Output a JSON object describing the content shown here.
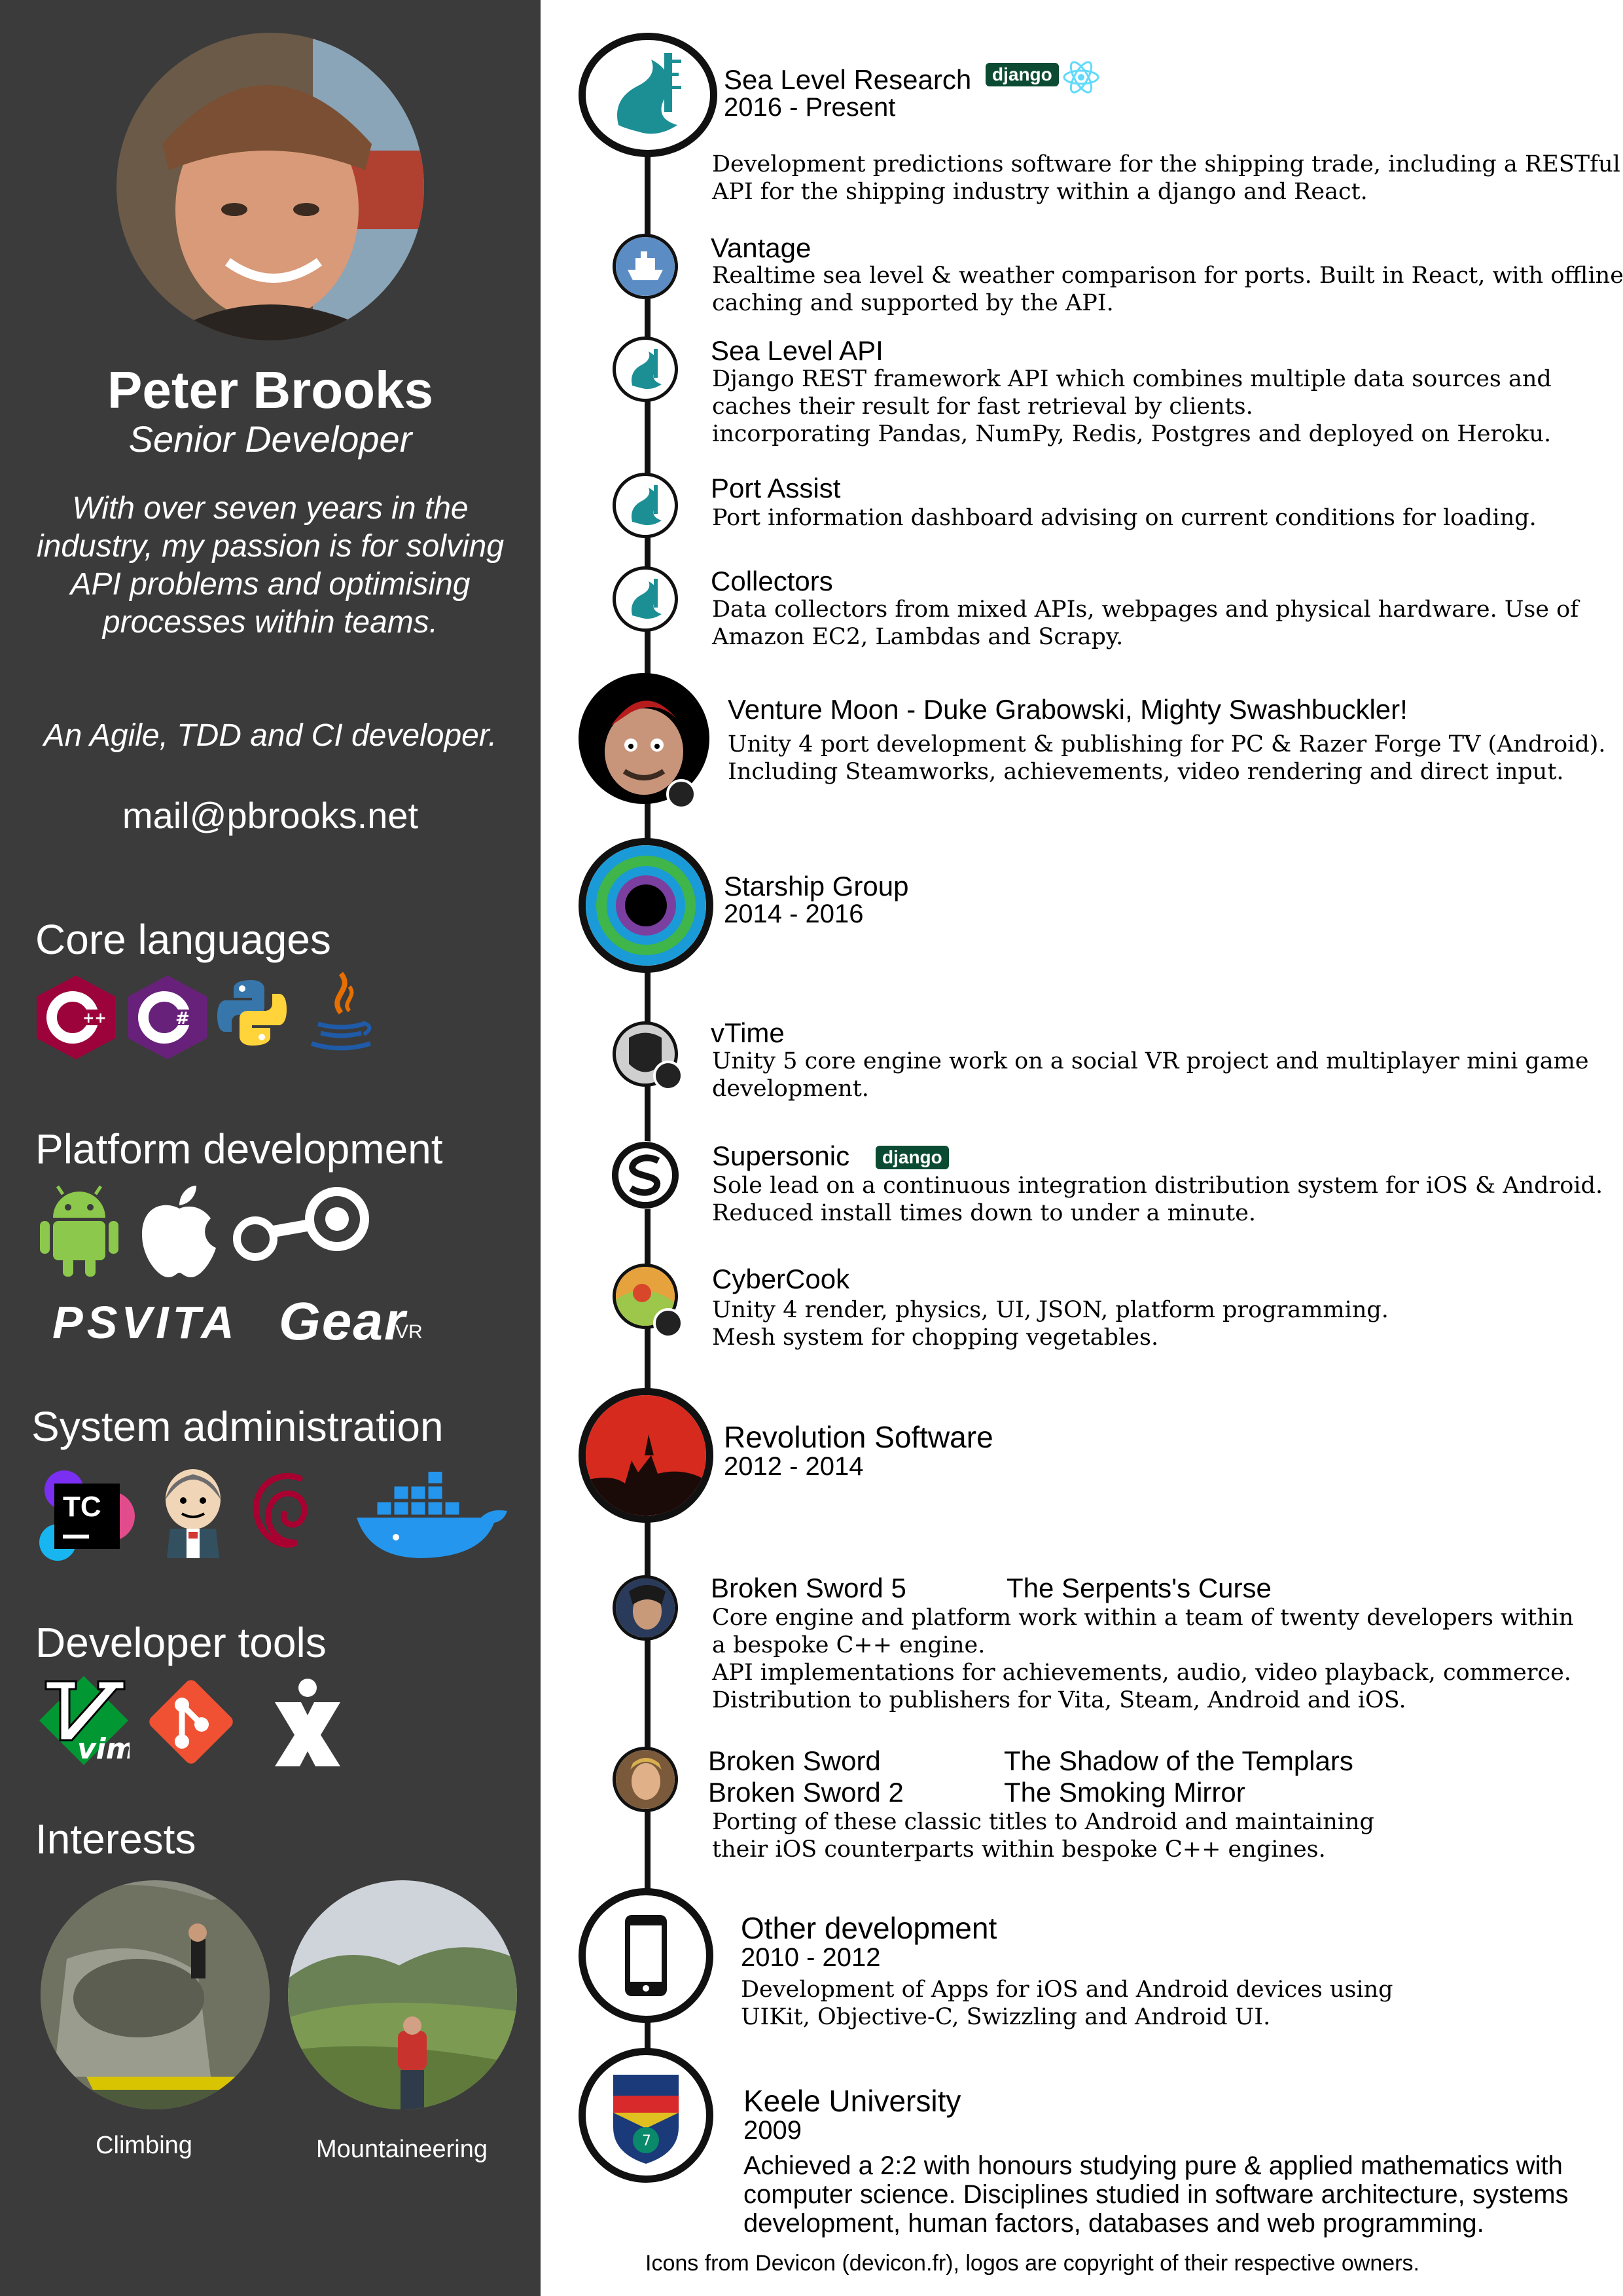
{
  "profile": {
    "name": "Peter Brooks",
    "role": "Senior Developer",
    "bio": "With over seven years in the industry, my passion is for solving API problems and optimising processes within teams.",
    "bio2": "An Agile, TDD and CI developer.",
    "email": "mail@pbrooks.net"
  },
  "sections": {
    "core": "Core languages",
    "platform": "Platform development",
    "sysadmin": "System administration",
    "tools": "Developer tools",
    "interests": "Interests"
  },
  "core_icons": [
    "cplusplus-icon",
    "csharp-icon",
    "python-icon",
    "java-icon"
  ],
  "platform_icons": [
    "android-icon",
    "apple-icon",
    "steam-icon"
  ],
  "platform_text": {
    "psvita": "PSVITA",
    "gear": "Gear",
    "vr": "VR"
  },
  "sysadmin_icons": [
    "teamcity-icon",
    "jenkins-icon",
    "debian-icon",
    "docker-icon"
  ],
  "tools_icons": [
    "vim-icon",
    "git-icon",
    "jira-icon"
  ],
  "teamcity_text": "TC",
  "vim_text": "vim",
  "interests": [
    {
      "label": "Climbing"
    },
    {
      "label": "Mountaineering"
    }
  ],
  "timeline": {
    "sea_level_research": {
      "title": "Sea Level Research",
      "dates": "2016 - Present",
      "badge": "django",
      "desc": [
        "Development predictions software for the shipping trade, including a RESTful",
        "API for the shipping industry within a django and React."
      ]
    },
    "vantage": {
      "title": "Vantage",
      "desc": [
        "Realtime sea level & weather comparison for ports. Built in React, with offline",
        "caching and supported by the API."
      ]
    },
    "sea_level_api": {
      "title": "Sea Level API",
      "desc": [
        "Django REST framework API which combines multiple data sources and",
        "caches their result for fast retrieval by clients.",
        "incorporating Pandas, NumPy, Redis, Postgres and deployed on Heroku."
      ]
    },
    "port_assist": {
      "title": "Port Assist",
      "desc": [
        "Port information dashboard advising on current conditions for loading."
      ]
    },
    "collectors": {
      "title": "Collectors",
      "desc": [
        "Data collectors from mixed APIs, webpages and physical hardware. Use of",
        "Amazon EC2, Lambdas and Scrapy."
      ]
    },
    "venture_moon": {
      "title": "Venture Moon - Duke Grabowski, Mighty Swashbuckler!",
      "desc": [
        "Unity 4 port development & publishing for PC & Razer Forge TV (Android).",
        "Including Steamworks, achievements, video rendering and direct input."
      ]
    },
    "starship": {
      "title": "Starship Group",
      "dates": "2014 - 2016"
    },
    "vtime": {
      "title": "vTime",
      "desc": [
        "Unity 5 core engine work on a social VR project and multiplayer mini game",
        "development."
      ]
    },
    "supersonic": {
      "title": "Supersonic",
      "badge": "django",
      "desc": [
        "Sole lead on a continuous integration distribution system for iOS & Android.",
        "Reduced install times down to under a minute."
      ]
    },
    "cybercook": {
      "title": "CyberCook",
      "desc": [
        "Unity 4 render, physics, UI, JSON, platform programming.",
        "Mesh system for chopping vegetables."
      ]
    },
    "revolution": {
      "title": "Revolution Software",
      "dates": "2012 - 2014"
    },
    "broken_sword_5": {
      "title": "Broken Sword 5",
      "subtitle": "The Serpents's Curse",
      "desc": [
        "Core engine and platform work within a team of twenty developers within",
        "a bespoke C++ engine.",
        "API implementations for achievements, audio, video playback, commerce.",
        "Distribution to publishers for Vita, Steam, Android and iOS."
      ]
    },
    "broken_sword": {
      "title": "Broken Sword",
      "subtitle": "The Shadow of the Templars",
      "title2": "Broken Sword 2",
      "subtitle2": "The Smoking Mirror",
      "desc": [
        "Porting of these classic titles to Android and maintaining",
        "their iOS counterparts within bespoke C++ engines."
      ]
    },
    "other": {
      "title": "Other development",
      "dates": "2010 - 2012",
      "desc": [
        "Development of Apps for iOS and Android devices using",
        "UIKit, Objective-C, Swizzling and Android UI."
      ]
    },
    "keele": {
      "title": "Keele University",
      "dates": "2009",
      "desc": [
        "Achieved a 2:2 with honours studying pure & applied mathematics with",
        "computer science. Disciplines studied in software architecture, systems",
        "development, human factors, databases and web programming."
      ],
      "crest_number": "7"
    }
  },
  "footer": "Icons from Devicon (devicon.fr), logos are copyright of their respective owners.",
  "colors": {
    "sidebar": "#3b3b3b",
    "django": "#0c4b33",
    "sea_teal": "#1c8f95"
  }
}
